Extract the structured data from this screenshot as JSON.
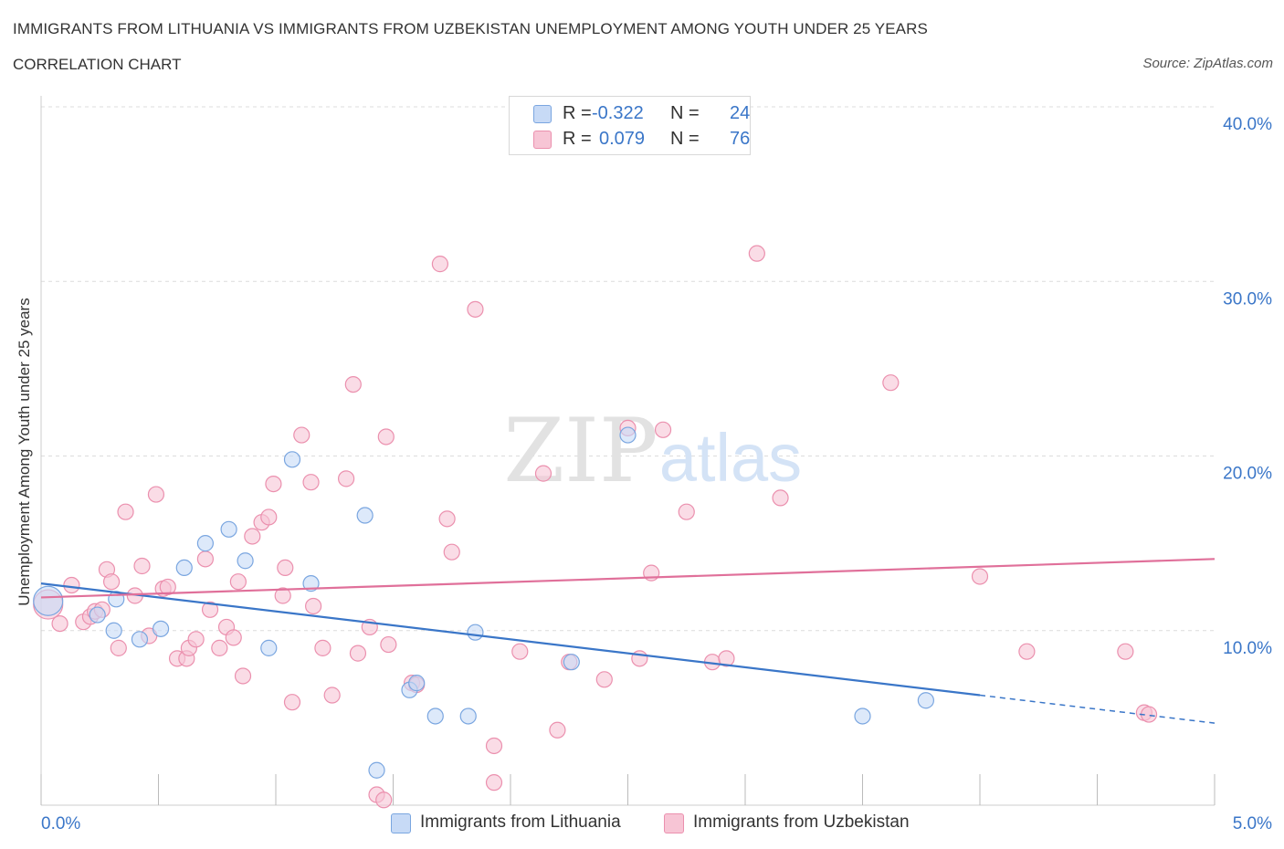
{
  "header": {
    "title": "IMMIGRANTS FROM LITHUANIA VS IMMIGRANTS FROM UZBEKISTAN UNEMPLOYMENT AMONG YOUTH UNDER 25 YEARS",
    "subtitle": "CORRELATION CHART",
    "source": "Source: ZipAtlas.com"
  },
  "legend": {
    "r_label": "R =",
    "n_label": "N =",
    "rows": [
      {
        "name": "Immigrants from Lithuania",
        "r": "-0.322",
        "n": "24"
      },
      {
        "name": "Immigrants from Uzbekistan",
        "r": "0.079",
        "n": "76"
      }
    ]
  },
  "colors": {
    "lithuania_fill": "#c7daf6",
    "lithuania_stroke": "#7aa6e0",
    "lithuania_line": "#3a76c8",
    "uzbekistan_fill": "#f7c5d5",
    "uzbekistan_stroke": "#eb90ae",
    "uzbekistan_line": "#e0709a",
    "axis_label": "#3a76c8",
    "grid": "#dcdcdc"
  },
  "watermark": {
    "zip": "ZIP",
    "atlas": "atlas"
  },
  "chart_data": {
    "type": "scatter",
    "title": "IMMIGRANTS FROM LITHUANIA VS IMMIGRANTS FROM UZBEKISTAN UNEMPLOYMENT AMONG YOUTH UNDER 25 YEARS",
    "xlabel": "",
    "ylabel": "Unemployment Among Youth under 25 years",
    "xlim": [
      0,
      5
    ],
    "ylim": [
      0,
      40
    ],
    "x_tick_labels": [
      "0.0%",
      "5.0%"
    ],
    "y_ticks": [
      10,
      20,
      30,
      40
    ],
    "y_tick_labels": [
      "10.0%",
      "20.0%",
      "30.0%",
      "40.0%"
    ],
    "grid": true,
    "legend_placement": "bottom",
    "series": [
      {
        "name": "Immigrants from Lithuania",
        "r": -0.322,
        "n": 24,
        "trend": {
          "x0": 0,
          "y0": 12.7,
          "x1": 4.0,
          "y1": 6.3,
          "dash_to_x": 5.0,
          "dash_to_y": 4.7
        },
        "points": [
          {
            "x": 0.03,
            "y": 11.7,
            "big": true
          },
          {
            "x": 0.24,
            "y": 10.9
          },
          {
            "x": 0.32,
            "y": 11.8
          },
          {
            "x": 0.31,
            "y": 10.0
          },
          {
            "x": 0.42,
            "y": 9.5
          },
          {
            "x": 0.51,
            "y": 10.1
          },
          {
            "x": 0.61,
            "y": 13.6
          },
          {
            "x": 0.7,
            "y": 15.0
          },
          {
            "x": 0.8,
            "y": 15.8
          },
          {
            "x": 0.87,
            "y": 14.0
          },
          {
            "x": 0.97,
            "y": 9.0
          },
          {
            "x": 1.07,
            "y": 19.8
          },
          {
            "x": 1.15,
            "y": 12.7
          },
          {
            "x": 1.38,
            "y": 16.6
          },
          {
            "x": 1.43,
            "y": 2.0
          },
          {
            "x": 1.57,
            "y": 6.6
          },
          {
            "x": 1.6,
            "y": 7.0
          },
          {
            "x": 1.68,
            "y": 5.1
          },
          {
            "x": 1.82,
            "y": 5.1
          },
          {
            "x": 1.85,
            "y": 9.9
          },
          {
            "x": 2.26,
            "y": 8.2
          },
          {
            "x": 2.5,
            "y": 21.2
          },
          {
            "x": 3.5,
            "y": 5.1
          },
          {
            "x": 3.77,
            "y": 6.0
          }
        ]
      },
      {
        "name": "Immigrants from Uzbekistan",
        "r": 0.079,
        "n": 76,
        "trend": {
          "x0": 0,
          "y0": 11.9,
          "x1": 5.0,
          "y1": 14.1
        },
        "points": [
          {
            "x": 0.03,
            "y": 11.5,
            "big": true
          },
          {
            "x": 0.08,
            "y": 10.4
          },
          {
            "x": 0.13,
            "y": 12.6
          },
          {
            "x": 0.18,
            "y": 10.5
          },
          {
            "x": 0.21,
            "y": 10.8
          },
          {
            "x": 0.23,
            "y": 11.1
          },
          {
            "x": 0.26,
            "y": 11.2
          },
          {
            "x": 0.28,
            "y": 13.5
          },
          {
            "x": 0.3,
            "y": 12.8
          },
          {
            "x": 0.33,
            "y": 9.0
          },
          {
            "x": 0.36,
            "y": 16.8
          },
          {
            "x": 0.4,
            "y": 12.0
          },
          {
            "x": 0.43,
            "y": 13.7
          },
          {
            "x": 0.46,
            "y": 9.7
          },
          {
            "x": 0.49,
            "y": 17.8
          },
          {
            "x": 0.52,
            "y": 12.4
          },
          {
            "x": 0.54,
            "y": 12.5
          },
          {
            "x": 0.58,
            "y": 8.4
          },
          {
            "x": 0.62,
            "y": 8.4
          },
          {
            "x": 0.63,
            "y": 9.0
          },
          {
            "x": 0.66,
            "y": 9.5
          },
          {
            "x": 0.7,
            "y": 14.1
          },
          {
            "x": 0.72,
            "y": 11.2
          },
          {
            "x": 0.76,
            "y": 9.0
          },
          {
            "x": 0.79,
            "y": 10.2
          },
          {
            "x": 0.82,
            "y": 9.6
          },
          {
            "x": 0.84,
            "y": 12.8
          },
          {
            "x": 0.86,
            "y": 7.4
          },
          {
            "x": 0.9,
            "y": 15.4
          },
          {
            "x": 0.94,
            "y": 16.2
          },
          {
            "x": 0.97,
            "y": 16.5
          },
          {
            "x": 0.99,
            "y": 18.4
          },
          {
            "x": 1.03,
            "y": 12.0
          },
          {
            "x": 1.04,
            "y": 13.6
          },
          {
            "x": 1.07,
            "y": 5.9
          },
          {
            "x": 1.11,
            "y": 21.2
          },
          {
            "x": 1.15,
            "y": 18.5
          },
          {
            "x": 1.16,
            "y": 11.4
          },
          {
            "x": 1.2,
            "y": 9.0
          },
          {
            "x": 1.24,
            "y": 6.3
          },
          {
            "x": 1.3,
            "y": 18.7
          },
          {
            "x": 1.33,
            "y": 24.1
          },
          {
            "x": 1.35,
            "y": 8.7
          },
          {
            "x": 1.4,
            "y": 10.2
          },
          {
            "x": 1.43,
            "y": 0.6
          },
          {
            "x": 1.46,
            "y": 0.3
          },
          {
            "x": 1.47,
            "y": 21.1
          },
          {
            "x": 1.48,
            "y": 9.2
          },
          {
            "x": 1.58,
            "y": 7.0
          },
          {
            "x": 1.6,
            "y": 6.9
          },
          {
            "x": 1.7,
            "y": 31.0
          },
          {
            "x": 1.73,
            "y": 16.4
          },
          {
            "x": 1.75,
            "y": 14.5
          },
          {
            "x": 1.85,
            "y": 28.4
          },
          {
            "x": 1.93,
            "y": 3.4
          },
          {
            "x": 1.93,
            "y": 1.3
          },
          {
            "x": 2.04,
            "y": 8.8
          },
          {
            "x": 2.14,
            "y": 19.0
          },
          {
            "x": 2.2,
            "y": 4.3
          },
          {
            "x": 2.25,
            "y": 8.2
          },
          {
            "x": 2.4,
            "y": 7.2
          },
          {
            "x": 2.5,
            "y": 21.6
          },
          {
            "x": 2.55,
            "y": 8.4
          },
          {
            "x": 2.6,
            "y": 13.3
          },
          {
            "x": 2.65,
            "y": 21.5
          },
          {
            "x": 2.75,
            "y": 16.8
          },
          {
            "x": 2.86,
            "y": 8.2
          },
          {
            "x": 2.92,
            "y": 8.4
          },
          {
            "x": 3.05,
            "y": 31.6
          },
          {
            "x": 3.15,
            "y": 17.6
          },
          {
            "x": 3.62,
            "y": 24.2
          },
          {
            "x": 4.0,
            "y": 13.1
          },
          {
            "x": 4.2,
            "y": 8.8
          },
          {
            "x": 4.62,
            "y": 8.8
          },
          {
            "x": 4.7,
            "y": 5.3
          },
          {
            "x": 4.72,
            "y": 5.2
          }
        ]
      }
    ]
  }
}
